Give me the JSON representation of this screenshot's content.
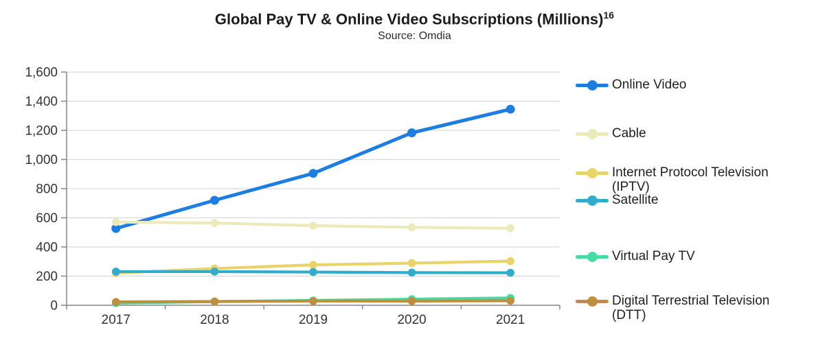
{
  "chart_data": {
    "type": "line",
    "title": "Global Pay TV & Online Video Subscriptions (Millions)",
    "title_superscript": "16",
    "subtitle": "Source: Omdia",
    "categories": [
      "2017",
      "2018",
      "2019",
      "2020",
      "2021"
    ],
    "series": [
      {
        "name": "Online Video",
        "legend_lines": [
          "Online Video"
        ],
        "color": "#1e7ee0",
        "values": [
          527,
          720,
          905,
          1183,
          1345
        ]
      },
      {
        "name": "Cable",
        "legend_lines": [
          "Cable"
        ],
        "color": "#ece9ba",
        "values": [
          571,
          564,
          546,
          535,
          528
        ]
      },
      {
        "name": "Internet Protocol Television (IPTV)",
        "legend_lines": [
          "Internet Protocol Television",
          "(IPTV)"
        ],
        "color": "#ead36b",
        "values": [
          221,
          252,
          277,
          289,
          303
        ]
      },
      {
        "name": "Satellite",
        "legend_lines": [
          "Satellite"
        ],
        "color": "#31adcb",
        "values": [
          231,
          231,
          228,
          224,
          223
        ]
      },
      {
        "name": "Virtual Pay TV",
        "legend_lines": [
          "Virtual Pay TV"
        ],
        "color": "#46dba3",
        "values": [
          15,
          25,
          33,
          42,
          50
        ]
      },
      {
        "name": "Digital Terrestrial Television (DTT)",
        "legend_lines": [
          "Digital Terrestrial Television",
          "(DTT)"
        ],
        "color": "#bf8f41",
        "values": [
          23,
          26,
          29,
          29,
          31
        ]
      }
    ],
    "xlabel": "",
    "ylabel": "",
    "ylim": [
      0,
      1600
    ],
    "ytick_step": 200,
    "ytick_labels": [
      "0",
      "200",
      "400",
      "600",
      "800",
      "1,000",
      "1,200",
      "1,400",
      "1,600"
    ],
    "grid": true,
    "legend_position": "right",
    "axis_color": "#858585",
    "grid_color": "#d9d9d9",
    "text_color": "#333333"
  }
}
